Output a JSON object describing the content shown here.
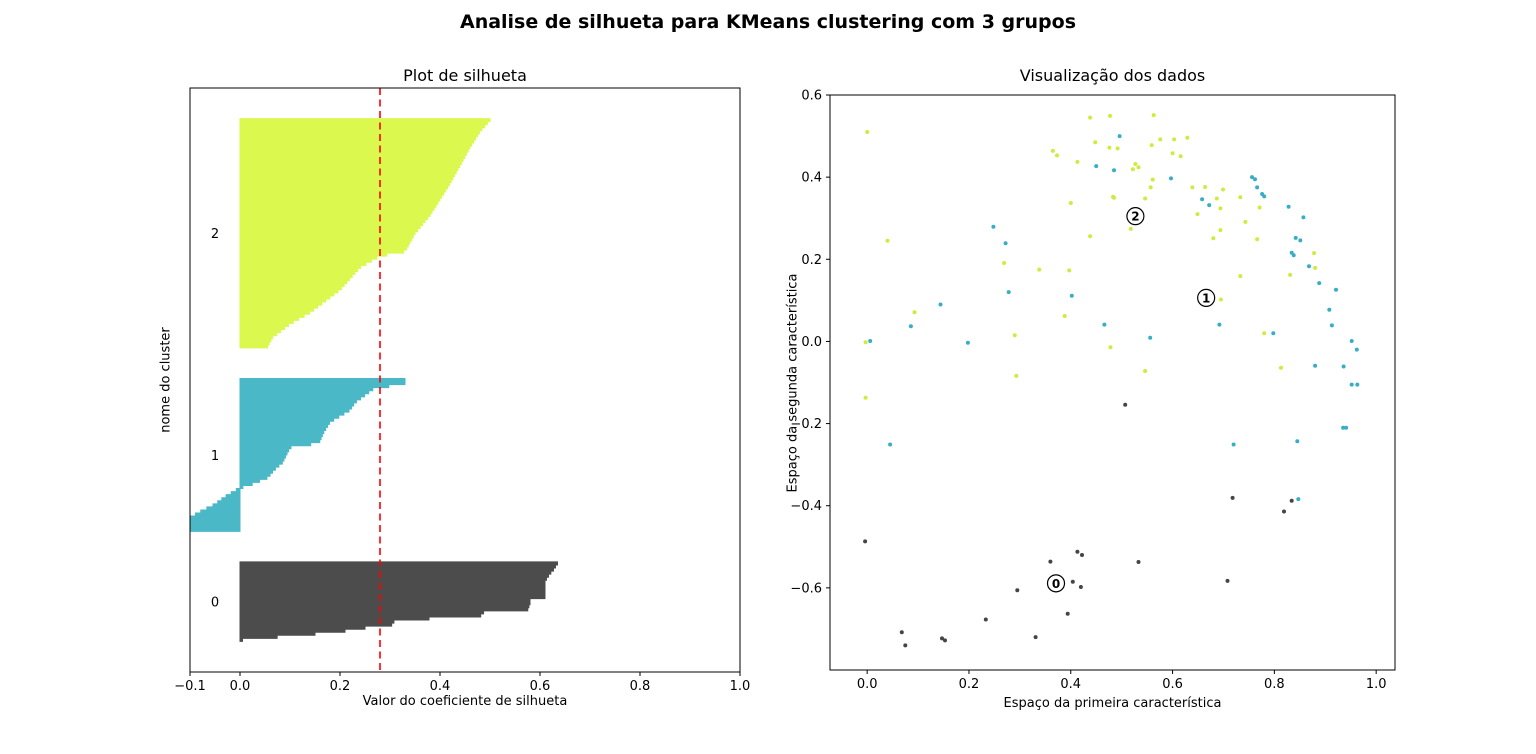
{
  "figure": {
    "suptitle": "Analise de silhueta para KMeans clustering com 3 grupos",
    "background": "#ffffff"
  },
  "chart_data": [
    {
      "id": "silhouette-plot",
      "type": "area",
      "title": "Plot de silhueta",
      "xlabel": "Valor do coeficiente de silhueta",
      "ylabel": "nome do cluster",
      "xlim": [
        -0.1,
        1.0
      ],
      "ylim": [
        0,
        191
      ],
      "xticks": [
        -0.1,
        0.0,
        0.2,
        0.4,
        0.6,
        0.8,
        1.0
      ],
      "xtick_labels": [
        "−0.1",
        "0.0",
        "0.2",
        "0.4",
        "0.6",
        "0.8",
        "1.0"
      ],
      "grid": false,
      "avg_silhouette": 0.28,
      "avg_line_color": "#ff0000",
      "cluster_label_x": -0.05,
      "clusters": [
        {
          "label": "0",
          "color": "#4c4c4c",
          "row_range": [
            10,
            36
          ],
          "profile": [
            [
              0,
              0.005
            ],
            [
              0.015,
              0.01
            ],
            [
              0.05,
              0.1
            ],
            [
              0.11,
              0.2
            ],
            [
              0.16,
              0.25
            ],
            [
              0.17,
              0.3
            ],
            [
              0.26,
              0.31
            ],
            [
              0.31,
              0.48
            ],
            [
              0.38,
              0.49
            ],
            [
              0.39,
              0.575
            ],
            [
              0.48,
              0.58
            ],
            [
              0.53,
              0.58
            ],
            [
              0.55,
              0.61
            ],
            [
              0.77,
              0.61
            ],
            [
              0.87,
              0.62
            ],
            [
              0.9,
              0.625
            ],
            [
              1,
              0.635
            ]
          ]
        },
        {
          "label": "1",
          "color": "#4ab8c6",
          "row_range": [
            46,
            96
          ],
          "profile": [
            [
              0,
              -0.1
            ],
            [
              0.08,
              -0.1
            ],
            [
              0.12,
              -0.08
            ],
            [
              0.17,
              -0.05
            ],
            [
              0.22,
              -0.03
            ],
            [
              0.28,
              0.0
            ],
            [
              0.3,
              0.02
            ],
            [
              0.35,
              0.056
            ],
            [
              0.4,
              0.068
            ],
            [
              0.45,
              0.085
            ],
            [
              0.55,
              0.1
            ],
            [
              0.58,
              0.158
            ],
            [
              0.65,
              0.167
            ],
            [
              0.72,
              0.18
            ],
            [
              0.8,
              0.22
            ],
            [
              0.85,
              0.23
            ],
            [
              0.9,
              0.25
            ],
            [
              0.95,
              0.27
            ],
            [
              0.97,
              0.33
            ],
            [
              1,
              0.33
            ]
          ]
        },
        {
          "label": "2",
          "color": "#daf84e",
          "row_range": [
            106,
            181
          ],
          "profile": [
            [
              0,
              0.055
            ],
            [
              0.04,
              0.065
            ],
            [
              0.1,
              0.1
            ],
            [
              0.15,
              0.14
            ],
            [
              0.2,
              0.17
            ],
            [
              0.25,
              0.2
            ],
            [
              0.3,
              0.22
            ],
            [
              0.35,
              0.24
            ],
            [
              0.4,
              0.28
            ],
            [
              0.42,
              0.33
            ],
            [
              0.5,
              0.35
            ],
            [
              0.58,
              0.38
            ],
            [
              0.65,
              0.4
            ],
            [
              0.72,
              0.42
            ],
            [
              0.8,
              0.44
            ],
            [
              0.88,
              0.46
            ],
            [
              0.95,
              0.48
            ],
            [
              1,
              0.5
            ]
          ]
        }
      ]
    },
    {
      "id": "data-scatter",
      "type": "scatter",
      "title": "Visualização dos dados",
      "xlabel": "Espaço da primeira característica",
      "ylabel": "Espaço da segunda característica",
      "xlim": [
        -0.073,
        1.037
      ],
      "ylim": [
        -0.8,
        0.6
      ],
      "xticks": [
        0.0,
        0.2,
        0.4,
        0.6,
        0.8,
        1.0
      ],
      "xtick_labels": [
        "0.0",
        "0.2",
        "0.4",
        "0.6",
        "0.8",
        "1.0"
      ],
      "yticks": [
        0.6,
        0.4,
        0.2,
        0.0,
        -0.2,
        -0.4,
        -0.6
      ],
      "ytick_labels": [
        "0.6",
        "0.4",
        "0.2",
        "0.0",
        "−0.2",
        "−0.4",
        "−0.6"
      ],
      "grid": false,
      "cluster_colors": [
        "#454545",
        "#38aec6",
        "#cfec3c"
      ],
      "centers": [
        {
          "label": "0",
          "x": 0.371,
          "y": -0.589
        },
        {
          "label": "1",
          "x": 0.666,
          "y": 0.106
        },
        {
          "label": "2",
          "x": 0.527,
          "y": 0.305
        }
      ],
      "points": [
        [
          0.0,
          0.51,
          2
        ],
        [
          0.438,
          0.545,
          2
        ],
        [
          0.477,
          0.549,
          2
        ],
        [
          0.448,
          0.485,
          2
        ],
        [
          0.476,
          0.472,
          2
        ],
        [
          0.365,
          0.464,
          2
        ],
        [
          0.373,
          0.453,
          2
        ],
        [
          0.413,
          0.437,
          2
        ],
        [
          0.45,
          0.427,
          1
        ],
        [
          0.485,
          0.417,
          1
        ],
        [
          0.4,
          0.337,
          2
        ],
        [
          0.485,
          0.35,
          2
        ],
        [
          0.248,
          0.279,
          1
        ],
        [
          0.272,
          0.239,
          1
        ],
        [
          0.04,
          0.245,
          2
        ],
        [
          0.438,
          0.256,
          2
        ],
        [
          0.269,
          0.191,
          2
        ],
        [
          0.338,
          0.175,
          2
        ],
        [
          0.397,
          0.173,
          2
        ],
        [
          0.278,
          0.12,
          1
        ],
        [
          0.402,
          0.111,
          1
        ],
        [
          0.144,
          0.09,
          1
        ],
        [
          0.093,
          0.071,
          2
        ],
        [
          0.086,
          0.037,
          1
        ],
        [
          -0.003,
          -0.002,
          2
        ],
        [
          0.006,
          0.001,
          1
        ],
        [
          0.198,
          -0.003,
          1
        ],
        [
          0.29,
          0.015,
          2
        ],
        [
          0.388,
          0.062,
          2
        ],
        [
          0.466,
          0.041,
          1
        ],
        [
          0.478,
          -0.014,
          2
        ],
        [
          0.293,
          -0.084,
          2
        ],
        [
          0.563,
          0.551,
          2
        ],
        [
          0.496,
          0.5,
          1
        ],
        [
          0.576,
          0.492,
          2
        ],
        [
          0.603,
          0.492,
          2
        ],
        [
          0.629,
          0.496,
          2
        ],
        [
          0.492,
          0.47,
          2
        ],
        [
          0.559,
          0.478,
          2
        ],
        [
          0.6,
          0.458,
          2
        ],
        [
          0.616,
          0.451,
          2
        ],
        [
          0.527,
          0.432,
          2
        ],
        [
          0.533,
          0.424,
          2
        ],
        [
          0.522,
          0.419,
          2
        ],
        [
          0.597,
          0.397,
          1
        ],
        [
          0.561,
          0.394,
          2
        ],
        [
          0.557,
          0.375,
          2
        ],
        [
          0.483,
          0.352,
          2
        ],
        [
          0.546,
          0.348,
          2
        ],
        [
          0.639,
          0.375,
          2
        ],
        [
          0.664,
          0.376,
          2
        ],
        [
          0.699,
          0.37,
          2
        ],
        [
          0.687,
          0.348,
          2
        ],
        [
          0.658,
          0.346,
          1
        ],
        [
          0.672,
          0.332,
          1
        ],
        [
          0.694,
          0.324,
          2
        ],
        [
          0.733,
          0.351,
          2
        ],
        [
          0.756,
          0.4,
          1
        ],
        [
          0.762,
          0.395,
          1
        ],
        [
          0.766,
          0.375,
          1
        ],
        [
          0.776,
          0.359,
          1
        ],
        [
          0.78,
          0.353,
          1
        ],
        [
          0.771,
          0.326,
          2
        ],
        [
          0.649,
          0.31,
          2
        ],
        [
          0.518,
          0.274,
          2
        ],
        [
          0.694,
          0.271,
          2
        ],
        [
          0.743,
          0.291,
          2
        ],
        [
          0.68,
          0.251,
          2
        ],
        [
          0.766,
          0.249,
          2
        ],
        [
          0.828,
          0.328,
          1
        ],
        [
          0.857,
          0.302,
          1
        ],
        [
          0.842,
          0.252,
          1
        ],
        [
          0.851,
          0.246,
          1
        ],
        [
          0.834,
          0.216,
          1
        ],
        [
          0.838,
          0.21,
          1
        ],
        [
          0.878,
          0.215,
          2
        ],
        [
          0.868,
          0.183,
          1
        ],
        [
          0.88,
          0.179,
          2
        ],
        [
          0.831,
          0.162,
          2
        ],
        [
          0.733,
          0.159,
          2
        ],
        [
          0.888,
          0.142,
          1
        ],
        [
          0.921,
          0.126,
          1
        ],
        [
          0.695,
          0.102,
          2
        ],
        [
          0.908,
          0.077,
          1
        ],
        [
          0.913,
          0.039,
          1
        ],
        [
          0.692,
          0.041,
          1
        ],
        [
          0.78,
          0.02,
          2
        ],
        [
          0.798,
          0.02,
          1
        ],
        [
          0.556,
          0.009,
          1
        ],
        [
          0.952,
          0.001,
          1
        ],
        [
          0.962,
          -0.02,
          1
        ],
        [
          0.88,
          -0.059,
          1
        ],
        [
          0.936,
          -0.061,
          1
        ],
        [
          0.813,
          -0.064,
          2
        ],
        [
          0.546,
          -0.072,
          2
        ],
        [
          0.952,
          -0.105,
          1
        ],
        [
          0.963,
          -0.105,
          1
        ],
        [
          -0.003,
          -0.137,
          2
        ],
        [
          0.045,
          -0.251,
          1
        ],
        [
          -0.004,
          -0.487,
          0
        ],
        [
          0.413,
          -0.512,
          0
        ],
        [
          0.422,
          -0.52,
          0
        ],
        [
          0.36,
          -0.536,
          0
        ],
        [
          0.404,
          -0.585,
          0
        ],
        [
          0.42,
          -0.598,
          0
        ],
        [
          0.295,
          -0.606,
          0
        ],
        [
          0.394,
          -0.663,
          0
        ],
        [
          0.233,
          -0.677,
          0
        ],
        [
          0.331,
          -0.72,
          0
        ],
        [
          0.068,
          -0.708,
          0
        ],
        [
          0.075,
          -0.74,
          0
        ],
        [
          0.147,
          -0.723,
          0
        ],
        [
          0.153,
          -0.728,
          0
        ],
        [
          0.507,
          -0.154,
          0
        ],
        [
          0.935,
          -0.21,
          1
        ],
        [
          0.941,
          -0.21,
          1
        ],
        [
          0.72,
          -0.251,
          1
        ],
        [
          0.845,
          -0.243,
          1
        ],
        [
          0.718,
          -0.381,
          0
        ],
        [
          0.834,
          -0.388,
          0
        ],
        [
          0.847,
          -0.384,
          1
        ],
        [
          0.819,
          -0.414,
          0
        ],
        [
          0.533,
          -0.537,
          0
        ],
        [
          0.708,
          -0.583,
          0
        ]
      ]
    }
  ]
}
